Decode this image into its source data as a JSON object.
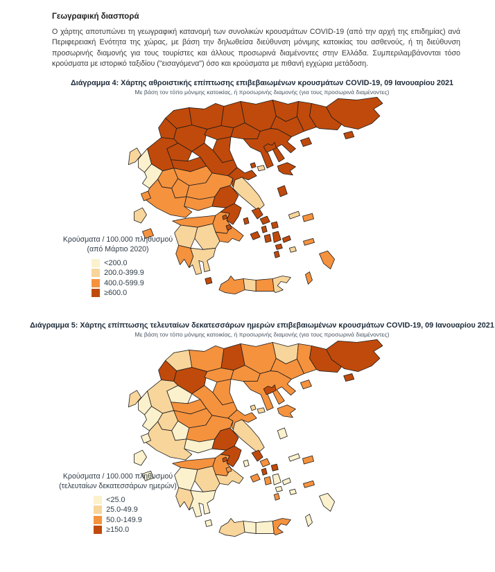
{
  "page": {
    "heading": "Γεωγραφική διασπορά",
    "intro": "Ο χάρτης αποτυπώνει τη γεωγραφική κατανομή των συνολικών κρουσμάτων COVID-19 (από την αρχή της επιδημίας) ανά Περιφερειακή Ενότητα της χώρας, με βάση την δηλωθείσα διεύθυνση μόνιμης κατοικίας του ασθενούς, ή τη διεύθυνση προσωρινής διαμονής για τους τουρίστες και άλλους προσωρινά διαμένοντες στην Ελλάδα. Συμπεριλαμβάνονται τόσο κρούσματα με ιστορικό ταξιδίου (\"εισαγόμενα\") όσο και κρούσματα με πιθανή εγχώρια μετάδοση."
  },
  "palette": {
    "c0": "#FBF1CD",
    "c1": "#F8D59B",
    "c2": "#F5923E",
    "c3": "#C04A0B",
    "border": "#1c1c1c",
    "sea": "#FFFFFF"
  },
  "map1": {
    "title": "Διάγραμμα 4: Χάρτης αθροιστικής επίπτωσης επιβεβαιωμένων κρουσμάτων COVID-19, 09 Ιανουαρίου 2021",
    "subtitle": "Με βάση τον τόπο μόνιμης κατοικίας, ή προσωρινής διαμονής (για τους προσωρινά διαμένοντες)",
    "legend": {
      "title_line1": "Κρούσματα / 100.000 πληθυσμού",
      "title_line2": "(από Μάρτιο 2020)",
      "items": [
        {
          "label": "<200.0",
          "color": "c0"
        },
        {
          "label": "200.0-399.9",
          "color": "c1"
        },
        {
          "label": "400.0-599.9",
          "color": "c2"
        },
        {
          "label": "≥600.0",
          "color": "c3"
        }
      ]
    },
    "regions": {
      "evros": "c3",
      "rodopi": "c3",
      "xanthi": "c3",
      "drama": "c3",
      "kavala": "c3",
      "thasos": "c3",
      "samothraki": "c3",
      "serres": "c3",
      "kilkis": "c3",
      "pella": "c3",
      "florina": "c3",
      "kastoria": "c3",
      "kozani": "c3",
      "grevena": "c3",
      "imathia": "c3",
      "thessaloniki": "c3",
      "pieria": "c3",
      "chalkidiki": "c3",
      "ioannina": "c3",
      "thesprotia": "c0",
      "corfu": "c1",
      "preveza": "c0",
      "arta": "c2",
      "lefkada": "c2",
      "trikala": "c3",
      "larissa": "c3",
      "karditsa": "c2",
      "magnesia": "c3",
      "skiathos": "c3",
      "skopelos": "c1",
      "evrytania": "c2",
      "fthiotida": "c2",
      "fokida": "c2",
      "aetolia": "c2",
      "viotia": "c3",
      "attica": "c3",
      "evia": "c1",
      "achaia": "c2",
      "corinthia": "c2",
      "argolida": "c2",
      "arcadia": "c1",
      "ilia": "c1",
      "messinia": "c2",
      "laconia": "c1",
      "kythira": "c3",
      "kefalonia": "c1",
      "zakynthos": "c2",
      "lemnos": "c3",
      "lesbos": "c3",
      "chios": "c3",
      "ikaria": "c1",
      "samos": "c2",
      "kea": "c3",
      "andros": "c3",
      "tinos": "c3",
      "mykonos": "c3",
      "syros": "c3",
      "paros": "c3",
      "naxos": "c3",
      "milos": "c3",
      "ios": "c3",
      "santorini": "c3",
      "amorgos": "c3",
      "astypalaia": "c1",
      "kos": "c2",
      "rhodes": "c2",
      "karpathos": "c2",
      "salamina": "c3",
      "aegina": "c3",
      "chania": "c2",
      "rethymno": "c1",
      "heraklion": "c2",
      "lasithi": "c1"
    }
  },
  "map2": {
    "title": "Διάγραμμα 5: Χάρτης επίπτωσης τελευταίων δεκατεσσάρων ημερών επιβεβαιωμένων κρουσμάτων COVID-19, 09 Ιανουαρίου 2021",
    "subtitle": "Με βάση τον τόπο μόνιμης κατοικίας, ή προσωρινής διαμονής (για τους προσωρινά διαμένοντες)",
    "legend": {
      "title_line1": "Κρούσματα / 100.000 πληθυσμού",
      "title_line2": "(τελευταίων δεκατεσσάρων ημερών)",
      "items": [
        {
          "label": "<25.0",
          "color": "c0"
        },
        {
          "label": "25.0-49.9",
          "color": "c1"
        },
        {
          "label": "50.0-149.9",
          "color": "c2"
        },
        {
          "label": "≥150.0",
          "color": "c3"
        }
      ]
    },
    "regions": {
      "evros": "c3",
      "rodopi": "c3",
      "xanthi": "c2",
      "drama": "c1",
      "kavala": "c2",
      "thasos": "c2",
      "samothraki": "c3",
      "serres": "c2",
      "kilkis": "c3",
      "pella": "c2",
      "florina": "c1",
      "kastoria": "c3",
      "kozani": "c3",
      "grevena": "c0",
      "imathia": "c2",
      "thessaloniki": "c2",
      "pieria": "c2",
      "chalkidiki": "c2",
      "ioannina": "c1",
      "thesprotia": "c0",
      "corfu": "c1",
      "preveza": "c0",
      "arta": "c1",
      "lefkada": "c0",
      "trikala": "c2",
      "larissa": "c2",
      "karditsa": "c2",
      "magnesia": "c2",
      "skiathos": "c1",
      "skopelos": "c1",
      "evrytania": "c0",
      "fthiotida": "c2",
      "fokida": "c0",
      "aetolia": "c1",
      "viotia": "c3",
      "attica": "c3",
      "evia": "c1",
      "achaia": "c2",
      "corinthia": "c2",
      "argolida": "c1",
      "arcadia": "c1",
      "ilia": "c0",
      "messinia": "c1",
      "laconia": "c0",
      "kythira": "c0",
      "kefalonia": "c0",
      "zakynthos": "c0",
      "lemnos": "c3",
      "lesbos": "c2",
      "chios": "c0",
      "ikaria": "c0",
      "samos": "c2",
      "kea": "c0",
      "andros": "c3",
      "tinos": "c2",
      "mykonos": "c3",
      "syros": "c3",
      "paros": "c2",
      "naxos": "c0",
      "milos": "c2",
      "ios": "c0",
      "santorini": "c2",
      "amorgos": "c0",
      "astypalaia": "c0",
      "kos": "c2",
      "rhodes": "c0",
      "karpathos": "c0",
      "salamina": "c3",
      "aegina": "c2",
      "chania": "c1",
      "rethymno": "c0",
      "heraklion": "c0",
      "lasithi": "c2"
    }
  }
}
